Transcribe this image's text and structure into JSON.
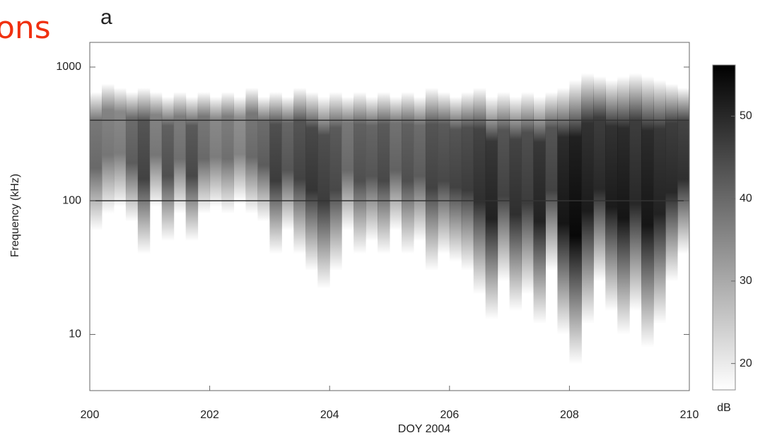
{
  "slide_text": "ons",
  "chart_data": {
    "type": "spectrogram",
    "title": "a",
    "xlabel": "DOY 2004",
    "ylabel": "Frequency (kHz)",
    "colorbar_label": "dB",
    "x": [
      200.0,
      200.2,
      200.4,
      200.6,
      200.8,
      201.0,
      201.2,
      201.4,
      201.6,
      201.8,
      202.0,
      202.2,
      202.4,
      202.6,
      202.8,
      203.0,
      203.2,
      203.4,
      203.6,
      203.8,
      204.0,
      204.2,
      204.4,
      204.6,
      204.8,
      205.0,
      205.2,
      205.4,
      205.6,
      205.8,
      206.0,
      206.2,
      206.4,
      206.6,
      206.8,
      207.0,
      207.2,
      207.4,
      207.6,
      207.8,
      208.0,
      208.2,
      208.4,
      208.6,
      208.8,
      209.0,
      209.2,
      209.4,
      209.6,
      209.8
    ],
    "low_freq": [
      60,
      80,
      90,
      70,
      40,
      90,
      50,
      80,
      50,
      80,
      90,
      80,
      100,
      80,
      70,
      40,
      60,
      40,
      30,
      22,
      30,
      60,
      40,
      50,
      40,
      60,
      40,
      50,
      30,
      40,
      35,
      30,
      20,
      13,
      25,
      15,
      20,
      12,
      30,
      10,
      6,
      12,
      25,
      15,
      10,
      15,
      8,
      12,
      25,
      40
    ],
    "high_freq": [
      650,
      750,
      700,
      650,
      700,
      650,
      600,
      650,
      600,
      650,
      600,
      650,
      600,
      700,
      600,
      650,
      600,
      700,
      650,
      600,
      650,
      600,
      650,
      600,
      650,
      600,
      650,
      600,
      700,
      650,
      600,
      650,
      700,
      600,
      650,
      600,
      650,
      600,
      650,
      700,
      800,
      900,
      850,
      800,
      850,
      900,
      850,
      800,
      750,
      700
    ],
    "values": [
      40,
      38,
      37,
      42,
      46,
      38,
      44,
      39,
      45,
      40,
      37,
      39,
      36,
      40,
      42,
      47,
      43,
      46,
      48,
      47,
      45,
      40,
      44,
      43,
      45,
      41,
      44,
      42,
      46,
      45,
      46,
      47,
      49,
      51,
      46,
      49,
      47,
      51,
      46,
      53,
      55,
      52,
      50,
      52,
      53,
      50,
      53,
      51,
      50,
      49
    ],
    "xlim": [
      200,
      210
    ],
    "xticks": [
      200,
      202,
      204,
      206,
      208,
      210
    ],
    "ylim": [
      3.8,
      1530
    ],
    "yticks": [
      10,
      100,
      1000
    ],
    "log_y": true,
    "hlines": [
      100,
      400
    ],
    "clim": [
      16.8,
      56.2
    ],
    "cticks": [
      20,
      30,
      40,
      50
    ]
  }
}
